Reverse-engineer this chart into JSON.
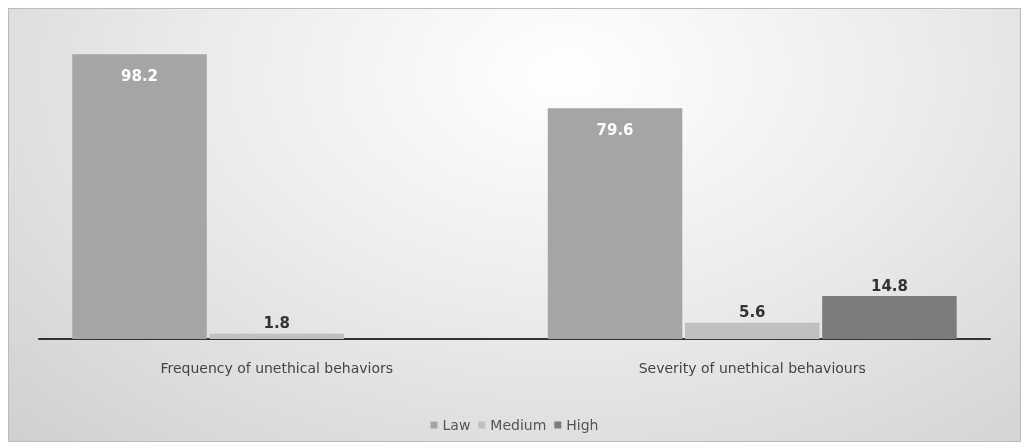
{
  "chart_data": {
    "type": "bar",
    "categories": [
      "Frequency of unethical behaviors",
      "Severity of unethical behaviours"
    ],
    "series": [
      {
        "name": "Law",
        "color": "#a5a5a5",
        "values": [
          98.2,
          79.6
        ]
      },
      {
        "name": "Medium",
        "color": "#c0c0c0",
        "values": [
          1.8,
          5.6
        ]
      },
      {
        "name": "High",
        "color": "#7c7c7c",
        "values": [
          null,
          14.8
        ]
      }
    ],
    "data_labels": true,
    "legend": "bottom"
  }
}
